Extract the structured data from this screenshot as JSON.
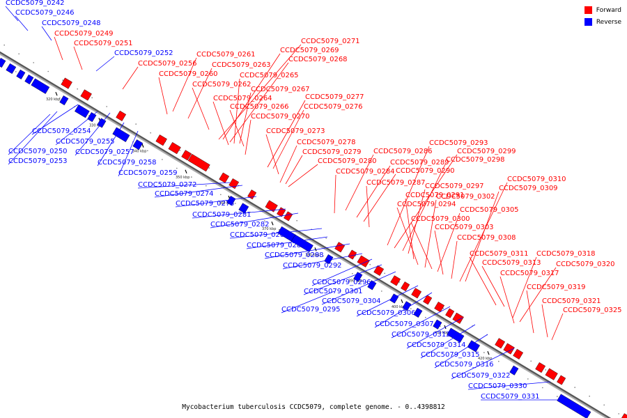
{
  "legend": {
    "forward_label": "Forward",
    "reverse_label": "Reverse",
    "forward_color": "#ff0000",
    "reverse_color": "#0000ff"
  },
  "caption": "Mycobacterium tuberculosis CCDC5079, complete genome. - 0..4398812",
  "ticks": [
    "320 kbp",
    "330 kbp",
    "340 kbp",
    "350 kbp",
    "360 kbp",
    "370 kbp",
    "380 kbp",
    "390 kbp",
    "400 kbp",
    "410 kbp",
    "420 kbp"
  ],
  "genes_reverse": [
    "CCDC5079_0242",
    "CCDC5079_0246",
    "CCDC5079_0248",
    "CCDC5079_0252",
    "CCDC5079_0254",
    "CCDC5079_0250",
    "CCDC5079_0255",
    "CCDC5079_0253",
    "CCDC5079_0257",
    "CCDC5079_0258",
    "CCDC5079_0259",
    "CCDC5079_0272",
    "CCDC5079_0274",
    "CCDC5079_0275",
    "CCDC5079_0281",
    "CCDC5079_0282",
    "CCDC5079_0283",
    "CCDC5079_0285",
    "CCDC5079_0288",
    "CCDC5079_0292",
    "CCDC5079_0296",
    "CCDC5079_0301",
    "CCDC5079_0304",
    "CCDC5079_0295",
    "CCDC5079_0306",
    "CCDC5079_0307",
    "CCDC5079_0312",
    "CCDC5079_0314",
    "CCDC5079_0315",
    "CCDC5079_0316",
    "CCDC5079_0322",
    "CCDC5079_0330",
    "CCDC5079_0331"
  ],
  "genes_forward": [
    "CCDC5079_0249",
    "CCDC5079_0251",
    "CCDC5079_0256",
    "CCDC5079_0261",
    "CCDC5079_0260",
    "CCDC5079_0263",
    "CCDC5079_0262",
    "CCDC5079_0271",
    "CCDC5079_0269",
    "CCDC5079_0268",
    "CCDC5079_0265",
    "CCDC5079_0267",
    "CCDC5079_0264",
    "CCDC5079_0266",
    "CCDC5079_0270",
    "CCDC5079_0277",
    "CCDC5079_0276",
    "CCDC5079_0273",
    "CCDC5079_0278",
    "CCDC5079_0279",
    "CCDC5079_0280",
    "CCDC5079_0286",
    "CCDC5079_0284",
    "CCDC5079_0289",
    "CCDC5079_0290",
    "CCDC5079_0287",
    "CCDC5079_0293",
    "CCDC5079_0299",
    "CCDC5079_0298",
    "CCDC5079_0297",
    "CCDC5079_0291",
    "CCDC5079_0294",
    "CCDC5079_0302",
    "CCDC5079_0300",
    "CCDC5079_0305",
    "CCDC5079_0303",
    "CCDC5079_0308",
    "CCDC5079_0310",
    "CCDC5079_0309",
    "CCDC5079_0311",
    "CCDC5079_0313",
    "CCDC5079_0318",
    "CCDC5079_0320",
    "CCDC5079_0317",
    "CCDC5079_0319",
    "CCDC5079_0321",
    "CCDC5079_0325"
  ]
}
